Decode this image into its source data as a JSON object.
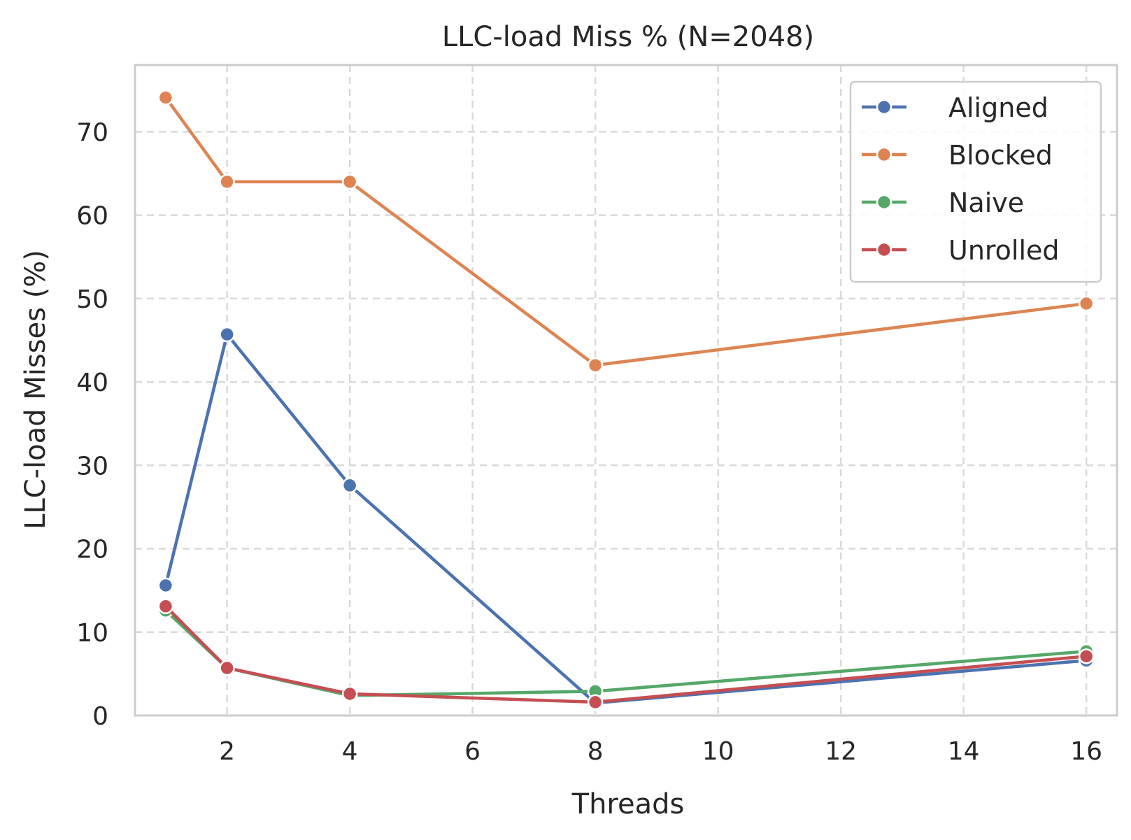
{
  "chart_data": {
    "type": "line",
    "title": "LLC-load Miss % (N=2048)",
    "xlabel": "Threads",
    "ylabel": "LLC-load Misses (%)",
    "xlim": [
      0.5,
      16.5
    ],
    "ylim": [
      0,
      78
    ],
    "x_ticks": [
      2,
      4,
      6,
      8,
      10,
      12,
      14,
      16
    ],
    "y_ticks": [
      0,
      10,
      20,
      30,
      40,
      50,
      60,
      70
    ],
    "grid": true,
    "grid_style": "dashed",
    "legend_position": "top-right",
    "x": [
      1,
      2,
      4,
      8,
      16
    ],
    "series": [
      {
        "name": "Aligned",
        "color": "#4c72b0",
        "values": [
          15.6,
          45.7,
          27.6,
          1.5,
          6.6
        ]
      },
      {
        "name": "Blocked",
        "color": "#dd8452",
        "values": [
          74.1,
          64.0,
          64.0,
          42.0,
          49.4
        ]
      },
      {
        "name": "Naive",
        "color": "#55a868",
        "values": [
          12.6,
          5.7,
          2.4,
          2.9,
          7.7
        ]
      },
      {
        "name": "Unrolled",
        "color": "#c44e52",
        "values": [
          13.1,
          5.7,
          2.6,
          1.6,
          7.1
        ]
      }
    ]
  }
}
